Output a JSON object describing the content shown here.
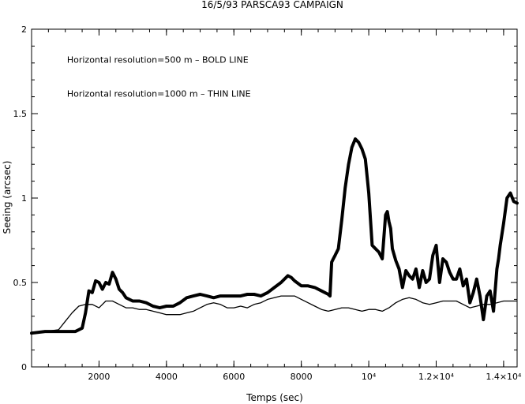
{
  "chart_data": {
    "type": "line",
    "title": "16/5/93 PARSCA93 CAMPAIGN",
    "xlabel": "Temps (sec)",
    "ylabel": "Seeing (arcsec)",
    "xlim": [
      0,
      14400
    ],
    "ylim": [
      0,
      2
    ],
    "x_ticks": [
      {
        "value": 2000,
        "label": "2000"
      },
      {
        "value": 4000,
        "label": "4000"
      },
      {
        "value": 6000,
        "label": "6000"
      },
      {
        "value": 8000,
        "label": "8000"
      },
      {
        "value": 10000,
        "label": "10⁴"
      },
      {
        "value": 12000,
        "label": "1.2×10⁴"
      },
      {
        "value": 14000,
        "label": "1.4×10⁴"
      }
    ],
    "y_ticks": [
      {
        "value": 0,
        "label": "0"
      },
      {
        "value": 0.5,
        "label": "0.5"
      },
      {
        "value": 1,
        "label": "1"
      },
      {
        "value": 1.5,
        "label": "1.5"
      },
      {
        "value": 2,
        "label": "2"
      }
    ],
    "grid": false,
    "annotations": [
      {
        "text": "Horizontal resolution=500 m – BOLD  LINE",
        "x": 1050,
        "y": 1.82
      },
      {
        "text": "Horizontal resolution=1000 m – THIN  LINE",
        "x": 1050,
        "y": 1.62
      }
    ],
    "series": [
      {
        "name": "Horizontal resolution=500 m",
        "style": "bold",
        "color": "#000000",
        "x": [
          0,
          400,
          800,
          1000,
          1300,
          1500,
          1600,
          1700,
          1800,
          1900,
          2000,
          2100,
          2200,
          2300,
          2400,
          2500,
          2600,
          2700,
          2800,
          3000,
          3200,
          3400,
          3600,
          3800,
          4000,
          4200,
          4400,
          4600,
          4800,
          5000,
          5200,
          5400,
          5600,
          5800,
          6000,
          6200,
          6400,
          6600,
          6800,
          7000,
          7200,
          7400,
          7600,
          7700,
          7800,
          8000,
          8200,
          8400,
          8600,
          8800,
          8850,
          8900,
          8950,
          9000,
          9100,
          9200,
          9300,
          9400,
          9500,
          9600,
          9700,
          9800,
          9900,
          10000,
          10100,
          10200,
          10300,
          10400,
          10500,
          10550,
          10600,
          10650,
          10700,
          10800,
          10900,
          11000,
          11100,
          11200,
          11300,
          11400,
          11500,
          11600,
          11700,
          11800,
          11900,
          12000,
          12100,
          12200,
          12300,
          12400,
          12500,
          12600,
          12700,
          12800,
          12900,
          13000,
          13100,
          13200,
          13300,
          13400,
          13500,
          13600,
          13700,
          13800,
          13850,
          13900,
          14000,
          14100,
          14200,
          14300,
          14400
        ],
        "y": [
          0.2,
          0.21,
          0.21,
          0.21,
          0.21,
          0.23,
          0.32,
          0.45,
          0.44,
          0.51,
          0.5,
          0.46,
          0.5,
          0.49,
          0.56,
          0.52,
          0.46,
          0.44,
          0.41,
          0.39,
          0.39,
          0.38,
          0.36,
          0.35,
          0.36,
          0.36,
          0.38,
          0.41,
          0.42,
          0.43,
          0.42,
          0.41,
          0.42,
          0.42,
          0.42,
          0.42,
          0.43,
          0.43,
          0.42,
          0.44,
          0.47,
          0.5,
          0.54,
          0.53,
          0.51,
          0.48,
          0.48,
          0.47,
          0.45,
          0.43,
          0.42,
          0.62,
          0.64,
          0.66,
          0.7,
          0.87,
          1.06,
          1.2,
          1.3,
          1.35,
          1.33,
          1.29,
          1.23,
          1.03,
          0.72,
          0.7,
          0.68,
          0.64,
          0.9,
          0.92,
          0.86,
          0.82,
          0.7,
          0.63,
          0.58,
          0.47,
          0.57,
          0.54,
          0.52,
          0.58,
          0.47,
          0.57,
          0.5,
          0.52,
          0.66,
          0.72,
          0.5,
          0.64,
          0.62,
          0.56,
          0.52,
          0.52,
          0.58,
          0.48,
          0.52,
          0.38,
          0.44,
          0.52,
          0.42,
          0.28,
          0.42,
          0.45,
          0.33,
          0.58,
          0.64,
          0.72,
          0.85,
          1.0,
          1.03,
          0.98,
          0.97
        ]
      },
      {
        "name": "Horizontal resolution=1000 m",
        "style": "thin",
        "color": "#000000",
        "x": [
          0,
          400,
          800,
          1000,
          1200,
          1400,
          1600,
          1800,
          2000,
          2200,
          2400,
          2600,
          2800,
          3000,
          3200,
          3400,
          3600,
          3800,
          4000,
          4200,
          4400,
          4600,
          4800,
          5000,
          5200,
          5400,
          5600,
          5800,
          6000,
          6200,
          6400,
          6600,
          6800,
          7000,
          7200,
          7400,
          7600,
          7800,
          8000,
          8200,
          8400,
          8600,
          8800,
          9000,
          9200,
          9400,
          9600,
          9800,
          10000,
          10200,
          10400,
          10600,
          10800,
          11000,
          11200,
          11400,
          11600,
          11800,
          12000,
          12200,
          12400,
          12600,
          12800,
          13000,
          13200,
          13400,
          13600,
          13800,
          14000,
          14200,
          14400
        ],
        "y": [
          0.2,
          0.21,
          0.22,
          0.27,
          0.32,
          0.36,
          0.37,
          0.37,
          0.35,
          0.39,
          0.39,
          0.37,
          0.35,
          0.35,
          0.34,
          0.34,
          0.33,
          0.32,
          0.31,
          0.31,
          0.31,
          0.32,
          0.33,
          0.35,
          0.37,
          0.38,
          0.37,
          0.35,
          0.35,
          0.36,
          0.35,
          0.37,
          0.38,
          0.4,
          0.41,
          0.42,
          0.42,
          0.42,
          0.4,
          0.38,
          0.36,
          0.34,
          0.33,
          0.34,
          0.35,
          0.35,
          0.34,
          0.33,
          0.34,
          0.34,
          0.33,
          0.35,
          0.38,
          0.4,
          0.41,
          0.4,
          0.38,
          0.37,
          0.38,
          0.39,
          0.39,
          0.39,
          0.37,
          0.35,
          0.36,
          0.37,
          0.37,
          0.38,
          0.39,
          0.39,
          0.39
        ]
      }
    ]
  }
}
